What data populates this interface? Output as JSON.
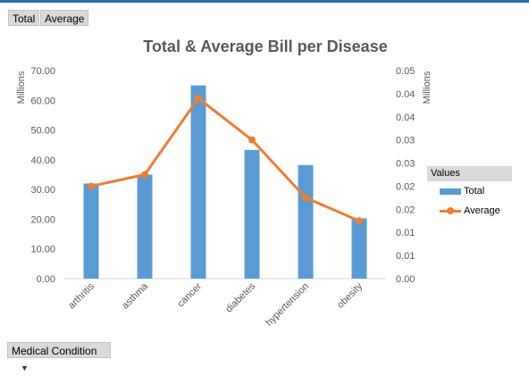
{
  "field_buttons": [
    "Total",
    "Average"
  ],
  "legend": {
    "header": "Values",
    "items": [
      "Total",
      "Average"
    ]
  },
  "axis_field": {
    "label": "Medical Condition"
  },
  "colors": {
    "bar": "#5b9bd5",
    "line": "#ed7d31"
  },
  "chart_data": {
    "type": "bar",
    "title": "Total & Average Bill per Disease",
    "categories": [
      "arthritis",
      "asthma",
      "cancer",
      "diabetes",
      "hypertension",
      "obesity"
    ],
    "primary_axis": {
      "label": "Millions",
      "ylim": [
        0,
        70
      ],
      "ticks": [
        "0.00",
        "10.00",
        "20.00",
        "30.00",
        "40.00",
        "50.00",
        "60.00",
        "70.00"
      ]
    },
    "secondary_axis": {
      "label": "Millions",
      "ylim": [
        0,
        0.045
      ],
      "ticks": [
        "0.00",
        "0.01",
        "0.01",
        "0.02",
        "0.02",
        "0.03",
        "0.03",
        "0.04",
        "0.04",
        "0.05"
      ]
    },
    "series": [
      {
        "name": "Total",
        "type": "bar",
        "axis": "primary",
        "values": [
          32.0,
          35.0,
          65.0,
          43.3,
          38.2,
          20.3
        ]
      },
      {
        "name": "Average",
        "type": "line",
        "axis": "secondary",
        "values": [
          0.02,
          0.0225,
          0.039,
          0.03,
          0.0175,
          0.0125
        ]
      }
    ],
    "grid": false,
    "legend_position": "right"
  }
}
